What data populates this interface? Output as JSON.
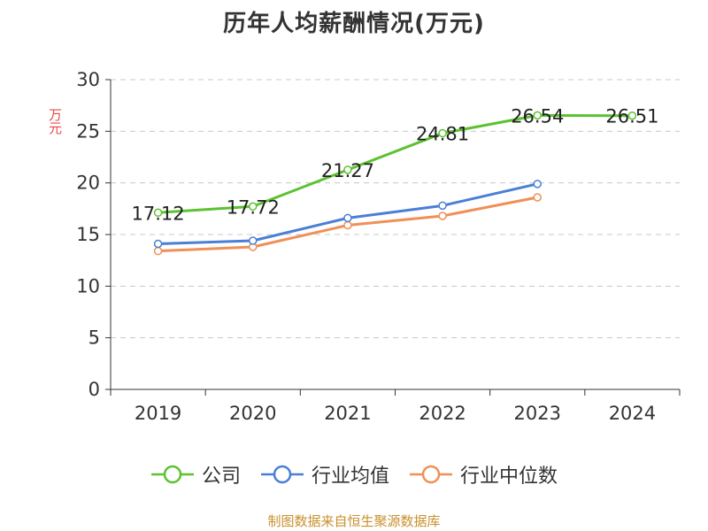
{
  "chart_data": {
    "type": "line",
    "title": "历年人均薪酬情况(万元)",
    "ylabel": "万元",
    "xlabel": "",
    "categories": [
      "2019",
      "2020",
      "2021",
      "2022",
      "2023",
      "2024"
    ],
    "ylim": [
      0,
      30
    ],
    "yticks": [
      0,
      5,
      10,
      15,
      20,
      25,
      30
    ],
    "grid": true,
    "legend_position": "bottom",
    "series": [
      {
        "name": "公司",
        "color": "#5cc230",
        "values": [
          17.12,
          17.72,
          21.27,
          24.81,
          26.54,
          26.51
        ],
        "labels": [
          "17.12",
          "17.72",
          "21.27",
          "24.81",
          "26.54",
          "26.51"
        ]
      },
      {
        "name": "行业均值",
        "color": "#4a7fd6",
        "values": [
          14.1,
          14.4,
          16.6,
          17.8,
          19.9,
          null
        ]
      },
      {
        "name": "行业中位数",
        "color": "#f08f56",
        "values": [
          13.4,
          13.8,
          15.9,
          16.8,
          18.6,
          null
        ]
      }
    ]
  },
  "footer": "制图数据来自恒生聚源数据库"
}
